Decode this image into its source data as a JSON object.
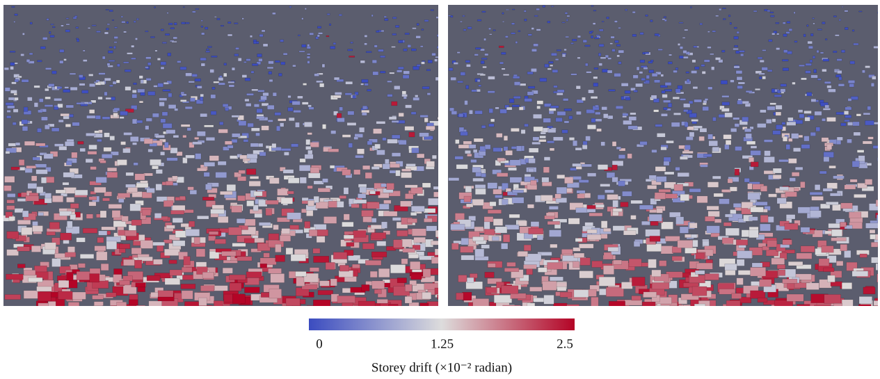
{
  "colorbar": {
    "label": "Storey drift (×10⁻² radian)",
    "range": [
      0,
      2.5
    ],
    "ticks": [
      0,
      1.25,
      2.5
    ],
    "colors": [
      "#3b4cc0",
      "#dddcdc",
      "#b40426"
    ]
  }
}
